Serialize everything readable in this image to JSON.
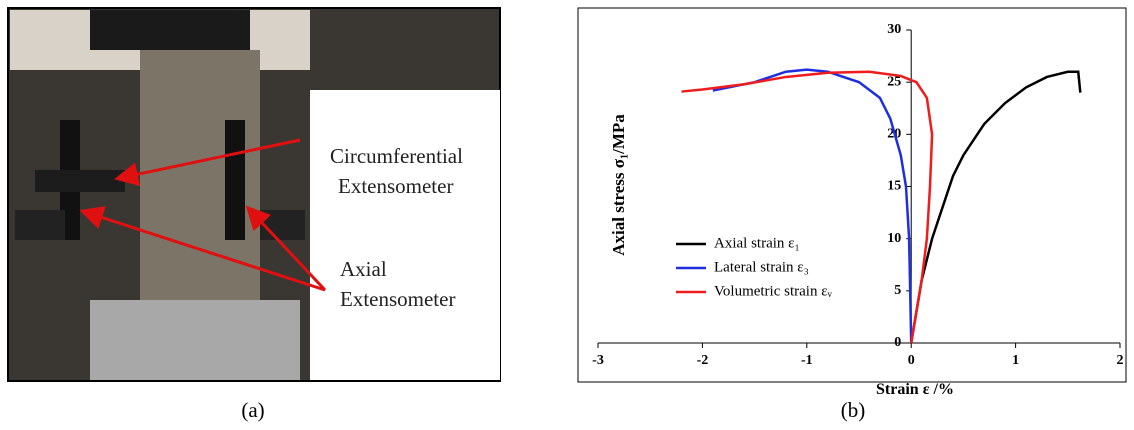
{
  "photo": {
    "labels": [
      "Circumferential",
      "Extensometer",
      "Axial",
      "Extensometer"
    ],
    "caption": "(a)"
  },
  "chart_data": {
    "type": "line",
    "caption": "(b)",
    "xlabel": "Strain ε /%",
    "ylabel": "Axial stress σ₁/MPa",
    "xlim": [
      -3,
      2
    ],
    "xticks": [
      -3,
      -2,
      -1,
      0,
      1,
      2
    ],
    "ylim": [
      0,
      30
    ],
    "yticks": [
      0,
      5,
      10,
      15,
      20,
      25,
      30
    ],
    "grid": false,
    "legend": "lower left",
    "series": [
      {
        "name": "Axial strain ε₁",
        "color": "#000000",
        "x": [
          0,
          0.05,
          0.1,
          0.2,
          0.3,
          0.4,
          0.5,
          0.7,
          0.9,
          1.1,
          1.3,
          1.5,
          1.6,
          1.62
        ],
        "values": [
          0,
          3,
          6,
          10,
          13,
          16,
          18,
          21,
          23,
          24.5,
          25.5,
          26,
          26,
          24
        ]
      },
      {
        "name": "Lateral strain ε₃",
        "color": "#1f2fe0",
        "x": [
          0,
          -0.01,
          -0.02,
          -0.05,
          -0.1,
          -0.2,
          -0.3,
          -0.5,
          -0.8,
          -1.0,
          -1.2,
          -1.5,
          -1.9
        ],
        "values": [
          0,
          5,
          10,
          15,
          18,
          21.5,
          23.5,
          25,
          26,
          26.2,
          26,
          25,
          24.2
        ]
      },
      {
        "name": "Volumetric strain εᵥ",
        "color": "#ee1c1c",
        "x": [
          0,
          0.05,
          0.1,
          0.15,
          0.18,
          0.2,
          0.15,
          0.05,
          -0.1,
          -0.4,
          -0.8,
          -1.2,
          -1.6,
          -2.0,
          -2.2
        ],
        "values": [
          0,
          3,
          6,
          10,
          15,
          20,
          23.5,
          25,
          25.6,
          26,
          25.9,
          25.5,
          24.8,
          24.3,
          24.1
        ]
      }
    ]
  }
}
